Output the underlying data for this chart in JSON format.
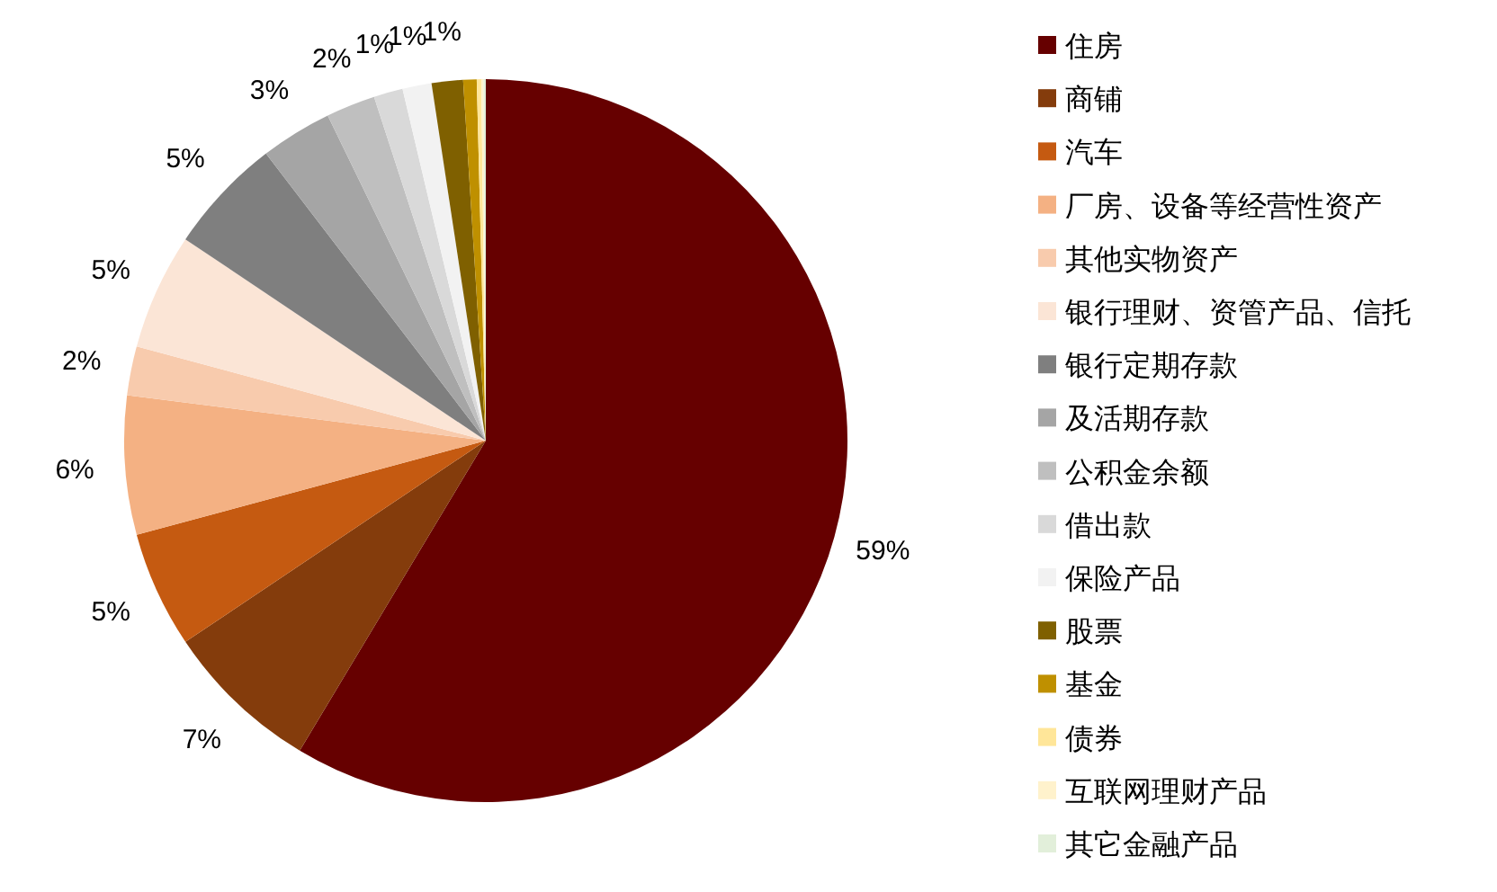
{
  "chart_data": {
    "type": "pie",
    "legend": "right",
    "categories": [
      "住房",
      "商铺",
      "汽车",
      "厂房、设备等经营性资产",
      "其他实物资产",
      "银行理财、资管产品、信托",
      "银行定期存款",
      "及活期存款",
      "公积金余额",
      "借出款",
      "保险产品",
      "股票",
      "基金",
      "债券",
      "互联网理财产品",
      "其它金融产品"
    ],
    "values": [
      58.6,
      7.0,
      5.2,
      6.2,
      2.2,
      5.2,
      5.2,
      3.2,
      2.2,
      1.3,
      1.3,
      1.4,
      0.6,
      0.2,
      0.1,
      0.1
    ],
    "value_labels": [
      "59%",
      "7%",
      "5%",
      "6%",
      "2%",
      "5%",
      "5%",
      "3%",
      "2%",
      "1%",
      "1%",
      "1%",
      null,
      null,
      null,
      null
    ],
    "colors": [
      "#660000",
      "#843c0c",
      "#c55a11",
      "#f4b183",
      "#f8cbad",
      "#fbe5d6",
      "#7f7f7f",
      "#a5a5a5",
      "#bfbfbf",
      "#d9d9d9",
      "#f2f2f2",
      "#7f6000",
      "#bf9000",
      "#ffe699",
      "#fff2cc",
      "#e2efda"
    ]
  }
}
